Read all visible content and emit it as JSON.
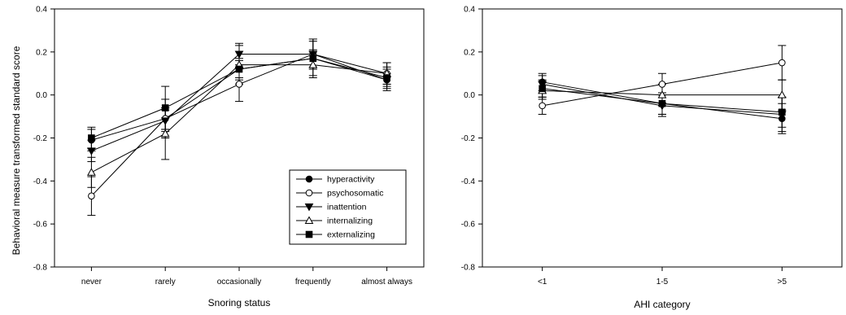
{
  "figure": {
    "y_axis_label": "Behavioral measure transformed standard score"
  },
  "chart_data": [
    {
      "type": "line",
      "xlabel": "Snoring status",
      "ylabel": "Behavioral measure transformed standard score",
      "categories": [
        "never",
        "rarely",
        "occasionally",
        "frequently",
        "almost always"
      ],
      "ylim": [
        -0.8,
        0.4
      ],
      "yticks": [
        "-0.8",
        "-0.6",
        "-0.4",
        "-0.2",
        "0.0",
        "0.2",
        "0.4"
      ],
      "error_bars": true,
      "legend_position": "bottom-right",
      "series": [
        {
          "name": "hyperactivity",
          "marker": "filled-circle",
          "values": [
            -0.21,
            -0.11,
            0.12,
            0.17,
            0.07
          ],
          "errors": [
            0.05,
            0.05,
            0.04,
            0.04,
            0.03
          ]
        },
        {
          "name": "psychosomatic",
          "marker": "open-circle",
          "values": [
            -0.47,
            -0.11,
            0.05,
            0.19,
            0.1
          ],
          "errors": [
            0.09,
            0.09,
            0.08,
            0.07,
            0.05
          ]
        },
        {
          "name": "inattention",
          "marker": "filled-triangle-down",
          "values": [
            -0.26,
            -0.12,
            0.19,
            0.19,
            0.07
          ],
          "errors": [
            0.05,
            0.05,
            0.05,
            0.07,
            0.05
          ]
        },
        {
          "name": "internalizing",
          "marker": "open-triangle-up",
          "values": [
            -0.36,
            -0.18,
            0.14,
            0.14,
            0.1
          ],
          "errors": [
            0.07,
            0.12,
            0.09,
            0.06,
            0.05
          ]
        },
        {
          "name": "externalizing",
          "marker": "filled-square",
          "values": [
            -0.2,
            -0.06,
            0.12,
            0.17,
            0.08
          ],
          "errors": [
            0.05,
            0.1,
            0.05,
            0.08,
            0.05
          ]
        }
      ]
    },
    {
      "type": "line",
      "xlabel": "AHI category",
      "categories": [
        "<1",
        "1-5",
        ">5"
      ],
      "ylim": [
        -0.8,
        0.4
      ],
      "yticks": [
        "-0.8",
        "-0.6",
        "-0.4",
        "-0.2",
        "0.0",
        "0.2",
        "0.4"
      ],
      "error_bars": true,
      "series": [
        {
          "name": "hyperactivity",
          "marker": "filled-circle",
          "values": [
            0.06,
            -0.04,
            -0.11
          ],
          "errors": [
            0.04,
            0.05,
            0.07
          ]
        },
        {
          "name": "psychosomatic",
          "marker": "open-circle",
          "values": [
            -0.05,
            0.05,
            0.15
          ],
          "errors": [
            0.04,
            0.05,
            0.08
          ]
        },
        {
          "name": "inattention",
          "marker": "filled-triangle-down",
          "values": [
            0.05,
            -0.05,
            -0.09
          ],
          "errors": [
            0.04,
            0.05,
            0.08
          ]
        },
        {
          "name": "internalizing",
          "marker": "open-triangle-up",
          "values": [
            0.02,
            0.0,
            0.0
          ],
          "errors": [
            0.04,
            0.05,
            0.07
          ]
        },
        {
          "name": "externalizing",
          "marker": "filled-square",
          "values": [
            0.03,
            -0.04,
            -0.08
          ],
          "errors": [
            0.04,
            0.05,
            0.07
          ]
        }
      ]
    }
  ]
}
